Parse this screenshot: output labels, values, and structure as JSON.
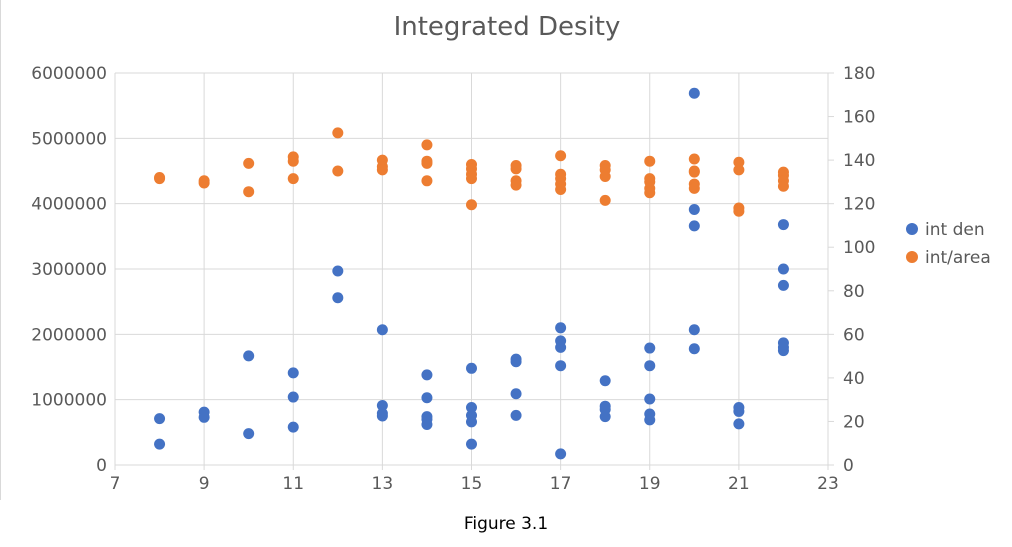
{
  "caption": "Figure 3.1",
  "chart_data": {
    "type": "scatter",
    "title": "Integrated Desity",
    "xlabel": "",
    "ylabel": "",
    "xlim": [
      7,
      23
    ],
    "ylim": [
      0,
      6000000
    ],
    "y2lim": [
      0,
      180
    ],
    "x_ticks": [
      7,
      9,
      11,
      13,
      15,
      17,
      19,
      21,
      23
    ],
    "y_ticks": [
      0,
      1000000,
      2000000,
      3000000,
      4000000,
      5000000,
      6000000
    ],
    "y2_ticks": [
      0,
      20,
      40,
      60,
      80,
      100,
      120,
      140,
      160,
      180
    ],
    "grid": true,
    "legend_position": "right",
    "series": [
      {
        "name": "int den",
        "axis": "left",
        "color": "#4472c4",
        "points": [
          [
            8,
            710000
          ],
          [
            8,
            320000
          ],
          [
            9,
            810000
          ],
          [
            9,
            730000
          ],
          [
            10,
            1670000
          ],
          [
            10,
            480000
          ],
          [
            11,
            1410000
          ],
          [
            11,
            1040000
          ],
          [
            11,
            580000
          ],
          [
            12,
            2970000
          ],
          [
            12,
            2560000
          ],
          [
            13,
            2070000
          ],
          [
            13,
            910000
          ],
          [
            13,
            790000
          ],
          [
            13,
            750000
          ],
          [
            14,
            1380000
          ],
          [
            14,
            1030000
          ],
          [
            14,
            740000
          ],
          [
            14,
            700000
          ],
          [
            14,
            620000
          ],
          [
            15,
            1480000
          ],
          [
            15,
            880000
          ],
          [
            15,
            760000
          ],
          [
            15,
            660000
          ],
          [
            15,
            320000
          ],
          [
            16,
            1620000
          ],
          [
            16,
            1580000
          ],
          [
            16,
            1090000
          ],
          [
            16,
            760000
          ],
          [
            17,
            2100000
          ],
          [
            17,
            1900000
          ],
          [
            17,
            1800000
          ],
          [
            17,
            1520000
          ],
          [
            17,
            170000
          ],
          [
            18,
            1290000
          ],
          [
            18,
            900000
          ],
          [
            18,
            850000
          ],
          [
            18,
            740000
          ],
          [
            19,
            1790000
          ],
          [
            19,
            1520000
          ],
          [
            19,
            1010000
          ],
          [
            19,
            780000
          ],
          [
            19,
            690000
          ],
          [
            20,
            5690000
          ],
          [
            20,
            3910000
          ],
          [
            20,
            3660000
          ],
          [
            20,
            2070000
          ],
          [
            20,
            1780000
          ],
          [
            21,
            880000
          ],
          [
            21,
            820000
          ],
          [
            21,
            630000
          ],
          [
            22,
            3680000
          ],
          [
            22,
            3000000
          ],
          [
            22,
            2750000
          ],
          [
            22,
            1870000
          ],
          [
            22,
            1800000
          ],
          [
            22,
            1750000
          ]
        ]
      },
      {
        "name": "int/area",
        "axis": "right",
        "color": "#ed7d31",
        "points": [
          [
            8,
            131.5
          ],
          [
            8,
            132
          ],
          [
            9,
            129.5
          ],
          [
            9,
            130.5
          ],
          [
            10,
            138.5
          ],
          [
            10,
            125.5
          ],
          [
            11,
            141.5
          ],
          [
            11,
            139.5
          ],
          [
            11,
            131.5
          ],
          [
            12,
            152.5
          ],
          [
            12,
            135
          ],
          [
            13,
            140
          ],
          [
            13,
            137
          ],
          [
            13,
            135.5
          ],
          [
            14,
            147
          ],
          [
            14,
            139.5
          ],
          [
            14,
            138.5
          ],
          [
            14,
            130.5
          ],
          [
            15,
            138
          ],
          [
            15,
            136
          ],
          [
            15,
            133.5
          ],
          [
            15,
            131.5
          ],
          [
            15,
            119.5
          ],
          [
            16,
            137.5
          ],
          [
            16,
            136
          ],
          [
            16,
            130.5
          ],
          [
            16,
            128.5
          ],
          [
            17,
            142
          ],
          [
            17,
            133.5
          ],
          [
            17,
            131.5
          ],
          [
            17,
            129
          ],
          [
            17,
            126.5
          ],
          [
            18,
            137.5
          ],
          [
            18,
            135.5
          ],
          [
            18,
            132.5
          ],
          [
            18,
            121.5
          ],
          [
            19,
            139.5
          ],
          [
            19,
            131.5
          ],
          [
            19,
            130
          ],
          [
            19,
            127
          ],
          [
            19,
            125
          ],
          [
            20,
            140.5
          ],
          [
            20,
            135
          ],
          [
            20,
            134.5
          ],
          [
            20,
            129
          ],
          [
            20,
            127
          ],
          [
            21,
            139
          ],
          [
            21,
            135.5
          ],
          [
            21,
            118
          ],
          [
            21,
            116.5
          ],
          [
            22,
            134.5
          ],
          [
            22,
            133
          ],
          [
            22,
            130.5
          ],
          [
            22,
            128
          ]
        ]
      }
    ]
  }
}
